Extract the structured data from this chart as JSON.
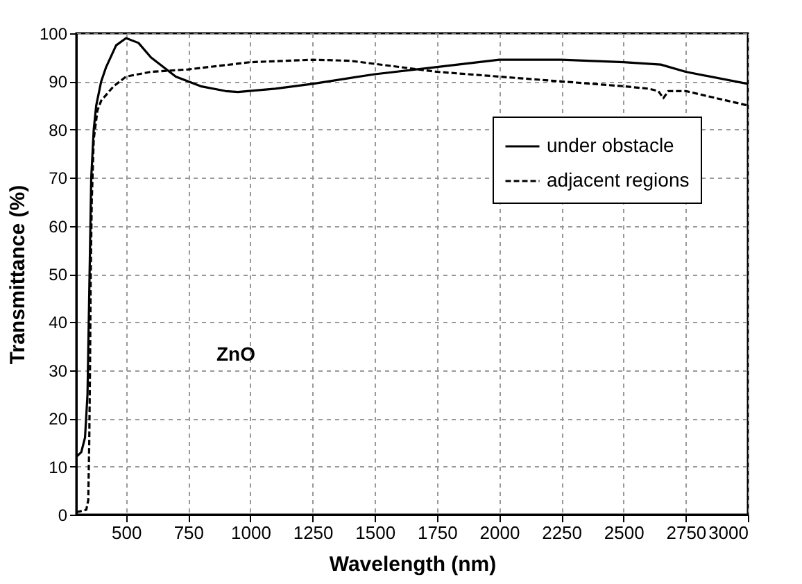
{
  "chart_data": {
    "type": "line",
    "xlabel": "Wavelength (nm)",
    "ylabel": "Transmittance (%)",
    "annotations": [
      "ZnO"
    ],
    "xlim": [
      300,
      3000
    ],
    "xticks": [
      500,
      750,
      1000,
      1250,
      1500,
      1750,
      2000,
      2250,
      2500,
      2750,
      3000
    ],
    "ylim": [
      0,
      100
    ],
    "yticks": [
      0,
      10,
      20,
      30,
      40,
      50,
      60,
      70,
      80,
      90,
      100
    ],
    "grid": true,
    "legend": "top right",
    "series": [
      {
        "name": "under obstacle",
        "color": "#000000",
        "line_style": "solid",
        "x": [
          300,
          320,
          335,
          345,
          350,
          355,
          360,
          370,
          380,
          400,
          420,
          460,
          500,
          550,
          600,
          700,
          800,
          900,
          950,
          1100,
          1250,
          1500,
          1750,
          2000,
          2250,
          2500,
          2650,
          2750,
          3000
        ],
        "values": [
          12,
          13,
          16,
          25,
          40,
          55,
          70,
          80,
          85,
          90,
          93,
          97.5,
          99,
          98,
          95,
          91,
          89,
          88,
          87.8,
          88.5,
          89.5,
          91.5,
          93,
          94.5,
          94.5,
          94,
          93.5,
          92,
          89.5
        ]
      },
      {
        "name": "adjacent regions",
        "color": "#000000",
        "line_style": "dashed",
        "x": [
          300,
          340,
          348,
          352,
          355,
          358,
          362,
          370,
          385,
          400,
          450,
          500,
          600,
          750,
          1000,
          1250,
          1400,
          1600,
          1750,
          2000,
          2250,
          2500,
          2600,
          2640,
          2660,
          2680,
          2750,
          3000
        ],
        "values": [
          0.5,
          1,
          3,
          15,
          30,
          50,
          65,
          78,
          84,
          86,
          89,
          91,
          92,
          92.5,
          94,
          94.5,
          94.3,
          93,
          92,
          91,
          90,
          89,
          88.5,
          88,
          86.5,
          88,
          88,
          85
        ]
      }
    ]
  }
}
